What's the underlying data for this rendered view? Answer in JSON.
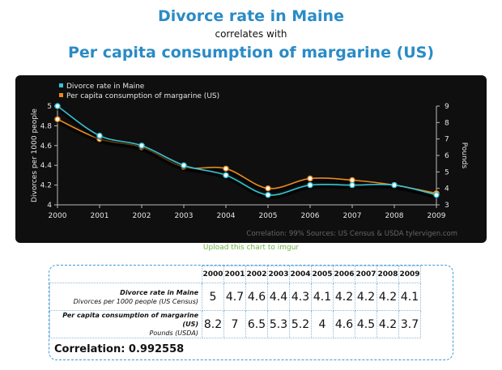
{
  "header": {
    "title_a": "Divorce rate in Maine",
    "connector": "correlates with",
    "title_b": "Per capita consumption of margarine (US)"
  },
  "chart_data": {
    "type": "line",
    "x": [
      "2000",
      "2001",
      "2002",
      "2003",
      "2004",
      "2005",
      "2006",
      "2007",
      "2008",
      "2009"
    ],
    "series": [
      {
        "name": "Divorce rate in Maine",
        "values": [
          5,
          4.7,
          4.6,
          4.4,
          4.3,
          4.1,
          4.2,
          4.2,
          4.2,
          4.1
        ],
        "axis": "left",
        "color": "#35c3d6"
      },
      {
        "name": "Per capita consumption of margarine (US)",
        "values": [
          8.2,
          7,
          6.5,
          5.3,
          5.2,
          4,
          4.6,
          4.5,
          4.2,
          3.7
        ],
        "axis": "right",
        "color": "#e8891e"
      }
    ],
    "ylabel_left": "Divorces per 1000 people",
    "ylabel_right": "Pounds",
    "ylim_left": [
      4,
      5
    ],
    "ylim_right": [
      3,
      9
    ],
    "yticks_left": [
      "4",
      "4.2",
      "4.4",
      "4.6",
      "4.8",
      "5"
    ],
    "yticks_right": [
      "3",
      "4",
      "5",
      "6",
      "7",
      "8",
      "9"
    ],
    "legend_position": "top-left",
    "grid": false,
    "background": "#0f0f0f",
    "credit": "Correlation: 99%     Sources: US Census & USDA     tylervigen.com"
  },
  "upload_link": "Upload this chart to imgur",
  "table": {
    "years": [
      "2000",
      "2001",
      "2002",
      "2003",
      "2004",
      "2005",
      "2006",
      "2007",
      "2008",
      "2009"
    ],
    "row_a": {
      "title": "Divorce rate in Maine",
      "units": "Divorces per 1000 people (US Census)",
      "values": [
        "5",
        "4.7",
        "4.6",
        "4.4",
        "4.3",
        "4.1",
        "4.2",
        "4.2",
        "4.2",
        "4.1"
      ]
    },
    "row_b": {
      "title": "Per capita consumption of margarine (US)",
      "units": "Pounds (USDA)",
      "values": [
        "8.2",
        "7",
        "6.5",
        "5.3",
        "5.2",
        "4",
        "4.6",
        "4.5",
        "4.2",
        "3.7"
      ]
    },
    "correlation": "Correlation: 0.992558"
  }
}
